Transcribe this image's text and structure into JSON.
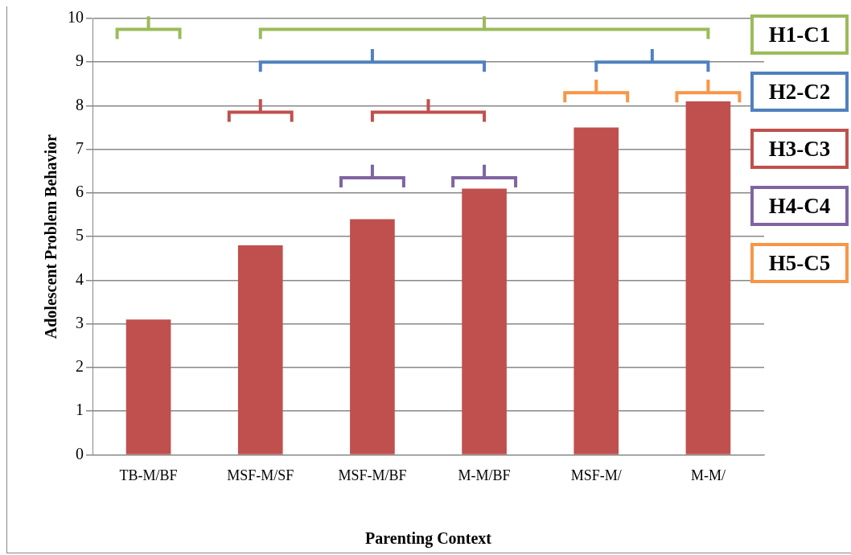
{
  "chart_data": {
    "type": "bar",
    "xlabel": "Parenting Context",
    "ylabel": "Adolescent Problem Behavior",
    "categories": [
      "TB-M/BF",
      "MSF-M/SF",
      "MSF-M/BF",
      "M-M/BF",
      "MSF-M/",
      "M-M/"
    ],
    "values": [
      3.1,
      4.8,
      5.4,
      6.1,
      7.5,
      8.1
    ],
    "color": "#c0504d",
    "ylim": [
      0,
      10
    ],
    "yticks": [
      0,
      1,
      2,
      3,
      4,
      5,
      6,
      7,
      8,
      9,
      10
    ],
    "grid": "y",
    "legend": false,
    "annotations": [
      "H1-C1",
      "H2-C2",
      "H3-C3",
      "H4-C4",
      "H5-C5"
    ]
  }
}
